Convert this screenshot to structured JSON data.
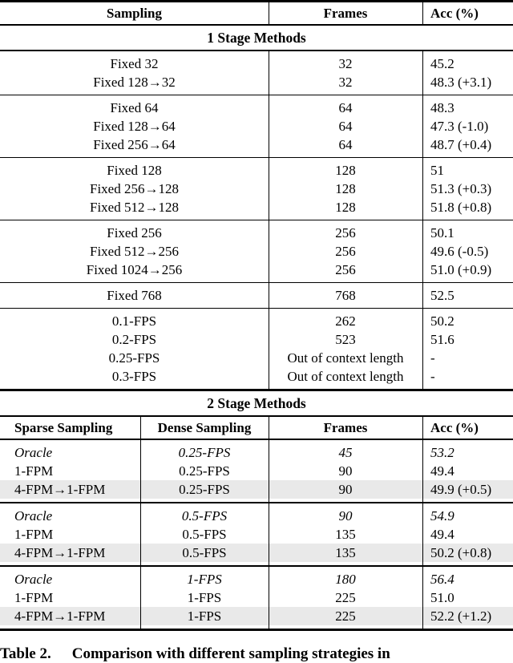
{
  "colors": {
    "highlight_row": "#e9e9e9",
    "text": "#000000",
    "background": "#ffffff"
  },
  "stage1": {
    "title": "1 Stage Methods",
    "header": {
      "sampling": "Sampling",
      "frames": "Frames",
      "acc": "Acc (%)"
    },
    "groups": [
      {
        "rows": [
          {
            "sampling": "Fixed 32",
            "frames": "32",
            "acc": "45.2"
          },
          {
            "sampling": "Fixed 128→32",
            "frames": "32",
            "acc": "48.3 (+3.1)"
          }
        ]
      },
      {
        "rows": [
          {
            "sampling": "Fixed 64",
            "frames": "64",
            "acc": "48.3"
          },
          {
            "sampling": "Fixed 128→64",
            "frames": "64",
            "acc": "47.3 (-1.0)"
          },
          {
            "sampling": "Fixed 256→64",
            "frames": "64",
            "acc": "48.7 (+0.4)"
          }
        ]
      },
      {
        "rows": [
          {
            "sampling": "Fixed 128",
            "frames": "128",
            "acc": "51"
          },
          {
            "sampling": "Fixed 256→128",
            "frames": "128",
            "acc": "51.3 (+0.3)"
          },
          {
            "sampling": "Fixed 512→128",
            "frames": "128",
            "acc": "51.8 (+0.8)"
          }
        ]
      },
      {
        "rows": [
          {
            "sampling": "Fixed 256",
            "frames": "256",
            "acc": "50.1"
          },
          {
            "sampling": "Fixed 512→256",
            "frames": "256",
            "acc": "49.6 (-0.5)"
          },
          {
            "sampling": "Fixed 1024→256",
            "frames": "256",
            "acc": "51.0 (+0.9)"
          }
        ]
      },
      {
        "rows": [
          {
            "sampling": "Fixed 768",
            "frames": "768",
            "acc": "52.5"
          }
        ]
      },
      {
        "rows": [
          {
            "sampling": "0.1-FPS",
            "frames": "262",
            "acc": "50.2"
          },
          {
            "sampling": "0.2-FPS",
            "frames": "523",
            "acc": "51.6"
          },
          {
            "sampling": "0.25-FPS",
            "frames": "Out of context length",
            "acc": "-"
          },
          {
            "sampling": "0.3-FPS",
            "frames": "Out of context length",
            "acc": "-"
          }
        ]
      }
    ]
  },
  "stage2": {
    "title": "2 Stage Methods",
    "header": {
      "sparse": "Sparse Sampling",
      "dense": "Dense Sampling",
      "frames": "Frames",
      "acc": "Acc (%)"
    },
    "groups": [
      {
        "rows": [
          {
            "sparse": "Oracle",
            "dense": "0.25-FPS",
            "frames": "45",
            "acc": "53.2"
          },
          {
            "sparse": "1-FPM",
            "dense": "0.25-FPS",
            "frames": "90",
            "acc": "49.4"
          },
          {
            "sparse": "4-FPM→1-FPM",
            "dense": "0.25-FPS",
            "frames": "90",
            "acc": "49.9 (+0.5)"
          }
        ]
      },
      {
        "rows": [
          {
            "sparse": "Oracle",
            "dense": "0.5-FPS",
            "frames": "90",
            "acc": "54.9"
          },
          {
            "sparse": "1-FPM",
            "dense": "0.5-FPS",
            "frames": "135",
            "acc": "49.4"
          },
          {
            "sparse": "4-FPM→1-FPM",
            "dense": "0.5-FPS",
            "frames": "135",
            "acc": "50.2 (+0.8)"
          }
        ]
      },
      {
        "rows": [
          {
            "sparse": "Oracle",
            "dense": "1-FPS",
            "frames": "180",
            "acc": "56.4"
          },
          {
            "sparse": "1-FPM",
            "dense": "1-FPS",
            "frames": "225",
            "acc": "51.0"
          },
          {
            "sparse": "4-FPM→1-FPM",
            "dense": "1-FPS",
            "frames": "225",
            "acc": "52.2 (+1.2)"
          }
        ]
      }
    ]
  },
  "caption": {
    "label": "Table 2.",
    "text": "Comparison with different sampling strategies in"
  }
}
